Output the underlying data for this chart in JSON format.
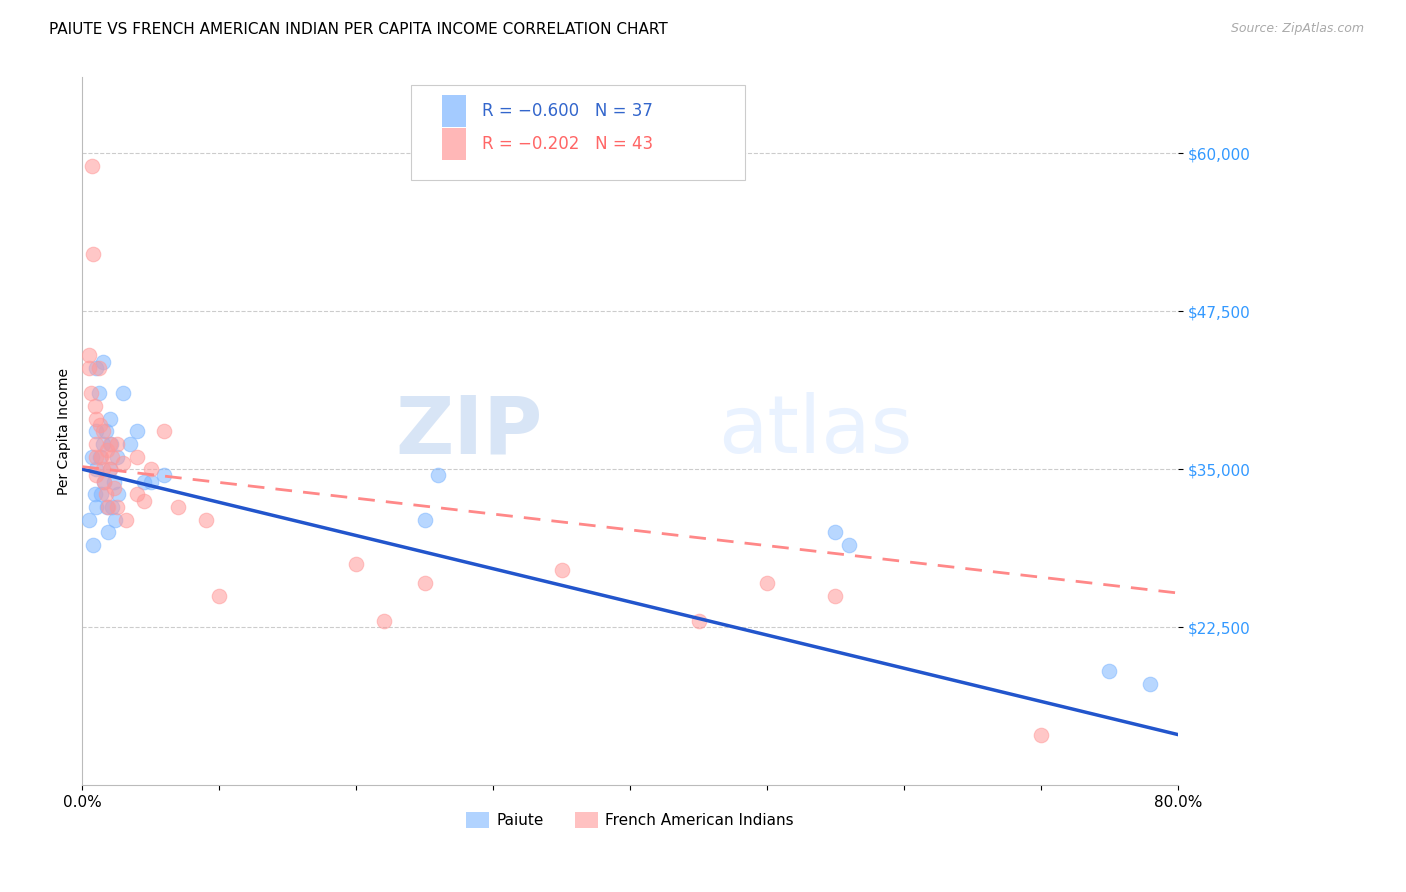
{
  "title": "PAIUTE VS FRENCH AMERICAN INDIAN PER CAPITA INCOME CORRELATION CHART",
  "source": "Source: ZipAtlas.com",
  "ylabel": "Per Capita Income",
  "ytick_labels": [
    "$22,500",
    "$35,000",
    "$47,500",
    "$60,000"
  ],
  "ytick_values": [
    22500,
    35000,
    47500,
    60000
  ],
  "ylim": [
    10000,
    66000
  ],
  "xlim": [
    0.0,
    0.8
  ],
  "paiute_color": "#7EB6FF",
  "french_color": "#FF9999",
  "line1_color": "#2255CC",
  "line2_color": "#FF8888",
  "watermark_zip": "ZIP",
  "watermark_atlas": "atlas",
  "background_color": "#FFFFFF",
  "grid_color": "#CCCCCC",
  "paiute_x": [
    0.005,
    0.007,
    0.008,
    0.009,
    0.01,
    0.01,
    0.01,
    0.01,
    0.012,
    0.013,
    0.014,
    0.015,
    0.015,
    0.016,
    0.017,
    0.018,
    0.019,
    0.02,
    0.02,
    0.021,
    0.022,
    0.023,
    0.024,
    0.025,
    0.026,
    0.03,
    0.035,
    0.04,
    0.045,
    0.05,
    0.06,
    0.25,
    0.26,
    0.55,
    0.56,
    0.75,
    0.78
  ],
  "paiute_y": [
    31000,
    36000,
    29000,
    33000,
    43000,
    38000,
    35000,
    32000,
    41000,
    36000,
    33000,
    43500,
    37000,
    34000,
    38000,
    32000,
    30000,
    39000,
    35000,
    37000,
    32000,
    34000,
    31000,
    36000,
    33000,
    41000,
    37000,
    38000,
    34000,
    34000,
    34500,
    31000,
    34500,
    30000,
    29000,
    19000,
    18000
  ],
  "french_x": [
    0.005,
    0.005,
    0.006,
    0.007,
    0.008,
    0.009,
    0.01,
    0.01,
    0.01,
    0.01,
    0.012,
    0.013,
    0.014,
    0.015,
    0.015,
    0.016,
    0.017,
    0.018,
    0.019,
    0.02,
    0.02,
    0.022,
    0.023,
    0.025,
    0.025,
    0.03,
    0.032,
    0.04,
    0.04,
    0.045,
    0.05,
    0.06,
    0.07,
    0.09,
    0.1,
    0.2,
    0.22,
    0.25,
    0.35,
    0.45,
    0.5,
    0.55,
    0.7
  ],
  "french_y": [
    44000,
    43000,
    41000,
    59000,
    52000,
    40000,
    39000,
    37000,
    36000,
    34500,
    43000,
    38500,
    36000,
    38000,
    35000,
    34000,
    33000,
    36500,
    32000,
    37000,
    35000,
    36000,
    33500,
    37000,
    32000,
    35500,
    31000,
    36000,
    33000,
    32500,
    35000,
    38000,
    32000,
    31000,
    25000,
    27500,
    23000,
    26000,
    27000,
    23000,
    26000,
    25000,
    14000
  ],
  "title_fontsize": 11,
  "source_fontsize": 9,
  "axis_label_fontsize": 10,
  "tick_fontsize": 11,
  "legend_fontsize": 12,
  "watermark_fontsize_zip": 58,
  "watermark_fontsize_atlas": 58,
  "line1_intercept": 35000,
  "line1_slope": -21000,
  "line2_intercept": 35200,
  "line2_slope": -10000
}
